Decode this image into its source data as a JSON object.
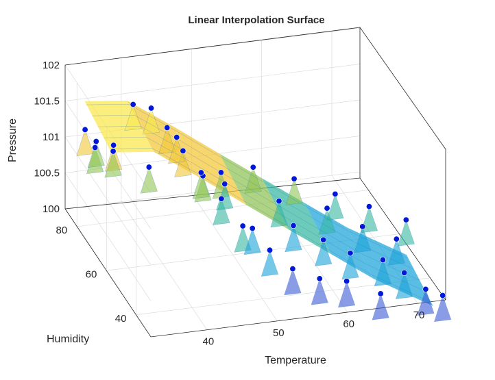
{
  "chart_data": {
    "type": "surface3d",
    "title": "Linear Interpolation Surface",
    "xlabel": "Temperature",
    "ylabel": "Humidity",
    "zlabel": "Pressure",
    "x_ticks": [
      "40",
      "50",
      "60",
      "70"
    ],
    "y_ticks": [
      "40",
      "60",
      "80"
    ],
    "z_ticks": [
      "100",
      "100.5",
      "101",
      "101.5",
      "102"
    ],
    "xlim": [
      32,
      74
    ],
    "ylim": [
      30,
      88
    ],
    "zlim": [
      100,
      102
    ],
    "colormap": [
      "#3e5ad6",
      "#1aa3d9",
      "#33b7a0",
      "#8fc453",
      "#f2c635",
      "#f9e84b"
    ],
    "marker_color": "#0019d9",
    "surface_ridges": [
      {
        "x": 35,
        "y": 80,
        "z": 101.35
      },
      {
        "x": 40,
        "y": 75,
        "z": 101.45
      },
      {
        "x": 45,
        "y": 68,
        "z": 101.25
      },
      {
        "x": 50,
        "y": 60,
        "z": 101.05
      },
      {
        "x": 55,
        "y": 55,
        "z": 100.8
      },
      {
        "x": 60,
        "y": 50,
        "z": 100.55
      },
      {
        "x": 65,
        "y": 45,
        "z": 100.3
      },
      {
        "x": 72,
        "y": 38,
        "z": 100.05
      }
    ],
    "samples": [
      {
        "x": 34,
        "y": 84,
        "z": 101.2
      },
      {
        "x": 35,
        "y": 82,
        "z": 101.0
      },
      {
        "x": 36,
        "y": 86,
        "z": 100.95
      },
      {
        "x": 37,
        "y": 79,
        "z": 101.1
      },
      {
        "x": 38,
        "y": 84,
        "z": 100.85
      },
      {
        "x": 40,
        "y": 80,
        "z": 101.6
      },
      {
        "x": 41,
        "y": 74,
        "z": 100.9
      },
      {
        "x": 43,
        "y": 82,
        "z": 101.45
      },
      {
        "x": 44,
        "y": 76,
        "z": 101.35
      },
      {
        "x": 45,
        "y": 70,
        "z": 101.2
      },
      {
        "x": 46,
        "y": 79,
        "z": 101.1
      },
      {
        "x": 47,
        "y": 66,
        "z": 100.95
      },
      {
        "x": 48,
        "y": 72,
        "z": 100.8
      },
      {
        "x": 49,
        "y": 63,
        "z": 100.7
      },
      {
        "x": 50,
        "y": 68,
        "z": 100.9
      },
      {
        "x": 51,
        "y": 58,
        "z": 100.45
      },
      {
        "x": 52,
        "y": 75,
        "z": 100.5
      },
      {
        "x": 53,
        "y": 61,
        "z": 100.3
      },
      {
        "x": 54,
        "y": 54,
        "z": 100.2
      },
      {
        "x": 55,
        "y": 70,
        "z": 100.85
      },
      {
        "x": 56,
        "y": 48,
        "z": 100.1
      },
      {
        "x": 57,
        "y": 62,
        "z": 100.6
      },
      {
        "x": 58,
        "y": 57,
        "z": 100.4
      },
      {
        "x": 59,
        "y": 44,
        "z": 100.05
      },
      {
        "x": 60,
        "y": 66,
        "z": 100.75
      },
      {
        "x": 61,
        "y": 51,
        "z": 100.35
      },
      {
        "x": 62,
        "y": 40,
        "z": 100.1
      },
      {
        "x": 63,
        "y": 58,
        "z": 100.55
      },
      {
        "x": 64,
        "y": 47,
        "z": 100.25
      },
      {
        "x": 65,
        "y": 62,
        "z": 100.6
      },
      {
        "x": 66,
        "y": 36,
        "z": 100.0
      },
      {
        "x": 67,
        "y": 53,
        "z": 100.4
      },
      {
        "x": 68,
        "y": 44,
        "z": 100.2
      },
      {
        "x": 69,
        "y": 58,
        "z": 100.5
      },
      {
        "x": 70,
        "y": 39,
        "z": 100.15
      },
      {
        "x": 71,
        "y": 49,
        "z": 100.3
      },
      {
        "x": 72,
        "y": 34,
        "z": 100.05
      },
      {
        "x": 73,
        "y": 52,
        "z": 100.45
      },
      {
        "x": 74,
        "y": 32,
        "z": 100.0
      }
    ]
  }
}
